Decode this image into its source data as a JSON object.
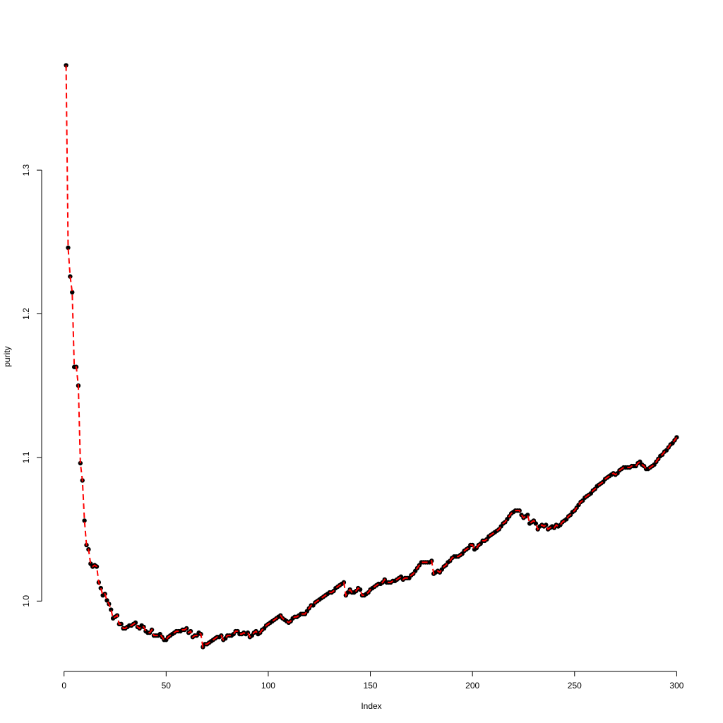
{
  "chart_data": {
    "type": "line",
    "x_label": "Index",
    "y_label": "purity",
    "xlim": [
      -10.96,
      311.96
    ],
    "ylim": [
      0.951,
      1.389
    ],
    "xticks": [
      0,
      50,
      100,
      150,
      200,
      250,
      300
    ],
    "yticks": [
      {
        "value": 1,
        "label": "1.0"
      },
      1.1,
      1.2,
      1.3
    ],
    "line_style": "dashed",
    "x": [
      1,
      2,
      3,
      4,
      5,
      6,
      7,
      8,
      9,
      10,
      11,
      12,
      13,
      14,
      15,
      16,
      17,
      18,
      19,
      20,
      21,
      22,
      23,
      24,
      25,
      26,
      27,
      28,
      29,
      30,
      31,
      32,
      33,
      34,
      35,
      36,
      37,
      38,
      39,
      40,
      41,
      42,
      43,
      44,
      45,
      46,
      47,
      48,
      49,
      50,
      51,
      52,
      53,
      54,
      55,
      56,
      57,
      58,
      59,
      60,
      61,
      62,
      63,
      64,
      65,
      66,
      67,
      68,
      69,
      70,
      71,
      72,
      73,
      74,
      75,
      76,
      77,
      78,
      79,
      80,
      81,
      82,
      83,
      84,
      85,
      86,
      87,
      88,
      89,
      90,
      91,
      92,
      93,
      94,
      95,
      96,
      97,
      98,
      99,
      100,
      101,
      102,
      103,
      104,
      105,
      106,
      107,
      108,
      109,
      110,
      111,
      112,
      113,
      114,
      115,
      116,
      117,
      118,
      119,
      120,
      121,
      122,
      123,
      124,
      125,
      126,
      127,
      128,
      129,
      130,
      131,
      132,
      133,
      134,
      135,
      136,
      137,
      138,
      139,
      140,
      141,
      142,
      143,
      144,
      145,
      146,
      147,
      148,
      149,
      150,
      151,
      152,
      153,
      154,
      155,
      156,
      157,
      158,
      159,
      160,
      161,
      162,
      163,
      164,
      165,
      166,
      167,
      168,
      169,
      170,
      171,
      172,
      173,
      174,
      175,
      176,
      177,
      178,
      179,
      180,
      181,
      182,
      183,
      184,
      185,
      186,
      187,
      188,
      189,
      190,
      191,
      192,
      193,
      194,
      195,
      196,
      197,
      198,
      199,
      200,
      201,
      202,
      203,
      204,
      205,
      206,
      207,
      208,
      209,
      210,
      211,
      212,
      213,
      214,
      215,
      216,
      217,
      218,
      219,
      220,
      221,
      222,
      223,
      224,
      225,
      226,
      227,
      228,
      229,
      230,
      231,
      232,
      233,
      234,
      235,
      236,
      237,
      238,
      239,
      240,
      241,
      242,
      243,
      244,
      245,
      246,
      247,
      248,
      249,
      250,
      251,
      252,
      253,
      254,
      255,
      256,
      257,
      258,
      259,
      260,
      261,
      262,
      263,
      264,
      265,
      266,
      267,
      268,
      269,
      270,
      271,
      272,
      273,
      274,
      275,
      276,
      277,
      278,
      279,
      280,
      281,
      282,
      283,
      284,
      285,
      286,
      287,
      288,
      289,
      290,
      291,
      292,
      293,
      294,
      295,
      296,
      297,
      298,
      299,
      300
    ],
    "series": [
      {
        "color": "#ff0000",
        "marker_color": "#000000",
        "values": [
          1.373,
          1.246,
          1.226,
          1.215,
          1.163,
          1.163,
          1.15,
          1.096,
          1.084,
          1.056,
          1.039,
          1.036,
          1.026,
          1.024,
          1.025,
          1.024,
          1.013,
          1.009,
          1.004,
          1.005,
          1.0005,
          0.998,
          0.994,
          0.988,
          0.989,
          0.99,
          0.984,
          0.984,
          0.981,
          0.981,
          0.982,
          0.983,
          0.983,
          0.984,
          0.985,
          0.982,
          0.981,
          0.983,
          0.982,
          0.979,
          0.978,
          0.978,
          0.98,
          0.976,
          0.976,
          0.976,
          0.977,
          0.975,
          0.973,
          0.973,
          0.975,
          0.976,
          0.977,
          0.978,
          0.979,
          0.979,
          0.979,
          0.98,
          0.98,
          0.981,
          0.978,
          0.979,
          0.975,
          0.976,
          0.976,
          0.978,
          0.977,
          0.968,
          0.97,
          0.97,
          0.971,
          0.972,
          0.973,
          0.974,
          0.975,
          0.975,
          0.976,
          0.973,
          0.974,
          0.976,
          0.976,
          0.976,
          0.977,
          0.979,
          0.979,
          0.977,
          0.977,
          0.978,
          0.977,
          0.978,
          0.975,
          0.976,
          0.978,
          0.979,
          0.977,
          0.978,
          0.98,
          0.981,
          0.983,
          0.984,
          0.985,
          0.986,
          0.987,
          0.988,
          0.989,
          0.99,
          0.988,
          0.987,
          0.986,
          0.985,
          0.986,
          0.988,
          0.989,
          0.989,
          0.99,
          0.991,
          0.991,
          0.991,
          0.993,
          0.995,
          0.997,
          0.997,
          0.999,
          1.0,
          1.001,
          1.002,
          1.003,
          1.004,
          1.005,
          1.006,
          1.006,
          1.007,
          1.009,
          1.01,
          1.011,
          1.012,
          1.013,
          1.004,
          1.006,
          1.008,
          1.006,
          1.006,
          1.007,
          1.009,
          1.008,
          1.004,
          1.004,
          1.005,
          1.006,
          1.008,
          1.009,
          1.01,
          1.011,
          1.012,
          1.012,
          1.013,
          1.015,
          1.013,
          1.013,
          1.013,
          1.014,
          1.014,
          1.015,
          1.016,
          1.017,
          1.015,
          1.016,
          1.016,
          1.016,
          1.018,
          1.019,
          1.021,
          1.023,
          1.025,
          1.027,
          1.027,
          1.027,
          1.027,
          1.027,
          1.028,
          1.019,
          1.02,
          1.021,
          1.02,
          1.022,
          1.024,
          1.025,
          1.027,
          1.028,
          1.03,
          1.031,
          1.031,
          1.031,
          1.032,
          1.033,
          1.035,
          1.036,
          1.037,
          1.039,
          1.039,
          1.036,
          1.037,
          1.039,
          1.04,
          1.042,
          1.042,
          1.043,
          1.045,
          1.046,
          1.047,
          1.048,
          1.049,
          1.05,
          1.052,
          1.054,
          1.055,
          1.057,
          1.059,
          1.061,
          1.062,
          1.063,
          1.063,
          1.063,
          1.06,
          1.058,
          1.059,
          1.06,
          1.054,
          1.055,
          1.056,
          1.054,
          1.05,
          1.052,
          1.053,
          1.052,
          1.053,
          1.05,
          1.051,
          1.052,
          1.051,
          1.053,
          1.052,
          1.053,
          1.055,
          1.056,
          1.057,
          1.059,
          1.06,
          1.062,
          1.063,
          1.065,
          1.067,
          1.069,
          1.07,
          1.072,
          1.073,
          1.074,
          1.075,
          1.077,
          1.078,
          1.08,
          1.081,
          1.082,
          1.083,
          1.085,
          1.086,
          1.087,
          1.088,
          1.089,
          1.088,
          1.089,
          1.091,
          1.092,
          1.093,
          1.093,
          1.093,
          1.093,
          1.094,
          1.094,
          1.094,
          1.096,
          1.097,
          1.095,
          1.094,
          1.092,
          1.092,
          1.093,
          1.094,
          1.095,
          1.097,
          1.099,
          1.101,
          1.102,
          1.104,
          1.105,
          1.107,
          1.109,
          1.11,
          1.112,
          1.114
        ]
      }
    ]
  }
}
